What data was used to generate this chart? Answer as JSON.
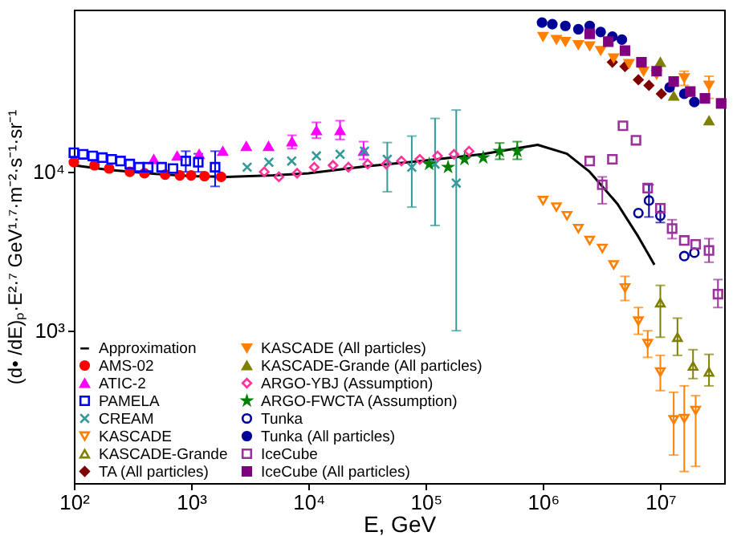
{
  "chart_data": {
    "type": "scatter",
    "xlabel": "E,  GeV",
    "ylabel": "(d• /dE)ₚ·E²·⁷  GeV¹·⁷·m⁻²·s⁻¹·sr⁻¹",
    "log": "xy",
    "grid": false,
    "legend": "bottom left",
    "xlim": [
      100,
      35000000
    ],
    "ylim": [
      110,
      105000
    ],
    "xticks": [
      {
        "value": 100,
        "label": "10²"
      },
      {
        "value": 1000,
        "label": "10³"
      },
      {
        "value": 10000,
        "label": "10⁴"
      },
      {
        "value": 100000,
        "label": "10⁵"
      },
      {
        "value": 1000000,
        "label": "10⁶"
      },
      {
        "value": 10000000,
        "label": "10⁷"
      }
    ],
    "yticks": [
      {
        "value": 1000,
        "label": "10³"
      },
      {
        "value": 10000,
        "label": "10⁴"
      }
    ],
    "series": [
      {
        "name": "Approximation",
        "type": "line",
        "color": "#000000",
        "marker": "none",
        "x": [
          100,
          200,
          500,
          1000,
          2000,
          5000,
          10000,
          30000,
          100000,
          300000,
          900000,
          1600000,
          2500000,
          4300000,
          6500000,
          8900000
        ],
        "values": [
          11000,
          10300,
          9700,
          9400,
          9300,
          9500,
          9800,
          10800,
          11800,
          12900,
          14800,
          13000,
          10000,
          6300,
          3900,
          2600
        ]
      },
      {
        "name": "AMS-02",
        "color": "#ff0000",
        "marker": "circle",
        "x": [
          100,
          150,
          200,
          300,
          400,
          600,
          800,
          1000,
          1300,
          1800
        ],
        "values": [
          11500,
          11000,
          10500,
          10000,
          9800,
          9600,
          9500,
          9500,
          9400,
          9300
        ]
      },
      {
        "name": "ATIC-2",
        "color": "#ff00ff",
        "marker": "triangle",
        "x": [
          480,
          760,
          1170,
          1860,
          2950,
          4570,
          7240,
          11700,
          18600,
          29500
        ],
        "values": [
          12000,
          12600,
          12900,
          13500,
          14500,
          14500,
          15500,
          18200,
          18200,
          13500
        ],
        "errors": [
          null,
          null,
          null,
          null,
          null,
          null,
          [
            14000,
            17000
          ],
          [
            16300,
            20500
          ],
          [
            16000,
            21000
          ],
          [
            12000,
            15500
          ]
        ]
      },
      {
        "name": "PAMELA",
        "color": "#0000ff",
        "marker": "square-open",
        "x": [
          100,
          120,
          145,
          175,
          210,
          250,
          300,
          360,
          430,
          560,
          700,
          900,
          1150,
          1600
        ],
        "values": [
          13200,
          12900,
          12600,
          12300,
          12000,
          11700,
          11200,
          10700,
          10700,
          10700,
          10500,
          11700,
          11500,
          10700
        ],
        "errors": [
          null,
          null,
          null,
          null,
          null,
          null,
          null,
          null,
          null,
          null,
          null,
          [
            10000,
            13500
          ],
          [
            10000,
            13000
          ],
          [
            8100,
            13500
          ]
        ]
      },
      {
        "name": "CREAM",
        "color": "#339999",
        "marker": "cross-open",
        "x": [
          3000,
          4600,
          7200,
          11700,
          18600,
          30000,
          47000,
          76000,
          120000,
          182000
        ],
        "values": [
          10700,
          11500,
          11700,
          12600,
          12900,
          13500,
          12000,
          10700,
          11200,
          8500
        ],
        "errors": [
          null,
          null,
          null,
          null,
          null,
          null,
          [
            7500,
            15300
          ],
          [
            6000,
            16800
          ],
          [
            4600,
            21700
          ],
          [
            1000,
            24500
          ]
        ]
      },
      {
        "name": "KASCADE",
        "color": "#ff8000",
        "marker": "triangle-down-open",
        "x": [
          1000000,
          1300000,
          1600000,
          2000000,
          2500000,
          3200000,
          4000000,
          5000000,
          6500000,
          7800000,
          10000000,
          13000000,
          16000000,
          20000000
        ],
        "values": [
          6600,
          6000,
          5300,
          4400,
          3700,
          3300,
          2600,
          1860,
          1150,
          830,
          550,
          275,
          280,
          315
        ],
        "errors": [
          null,
          null,
          null,
          null,
          null,
          null,
          null,
          [
            1550,
            2200
          ],
          [
            950,
            1400
          ],
          [
            680,
            1000
          ],
          [
            420,
            700
          ],
          [
            165,
            410
          ],
          [
            130,
            450
          ],
          [
            140,
            390
          ]
        ]
      },
      {
        "name": "KASCADE-Grande",
        "color": "#808000",
        "marker": "triangle-open",
        "x": [
          10000000,
          14000000,
          19000000,
          26000000
        ],
        "values": [
          1500,
          910,
          600,
          550
        ],
        "errors": [
          [
            910,
            1930
          ],
          [
            700,
            1200
          ],
          [
            500,
            760
          ],
          [
            450,
            710
          ]
        ]
      },
      {
        "name": "TA (All particles)",
        "color": "#800000",
        "marker": "diamond",
        "x": [
          3900000,
          5000000,
          6500000,
          8000000,
          10200000
        ],
        "values": [
          49000,
          46000,
          38000,
          35000,
          31000
        ]
      },
      {
        "name": "KASCADE (All particles)",
        "color": "#ff8000",
        "marker": "triangle-down",
        "x": [
          1000000,
          1300000,
          1550000,
          2000000,
          2500000,
          3100000,
          4000000,
          5400000,
          7200000,
          9300000,
          16000000,
          26000000
        ],
        "values": [
          71000,
          68000,
          66000,
          63000,
          62000,
          58000,
          52000,
          48000,
          43000,
          41000,
          39000,
          35000
        ],
        "errors": [
          null,
          null,
          null,
          null,
          null,
          null,
          null,
          null,
          null,
          null,
          [
            35000,
            43000
          ],
          [
            29000,
            40000
          ]
        ]
      },
      {
        "name": "KASCADE-Grande (All particles)",
        "color": "#808000",
        "marker": "triangle",
        "x": [
          10000000,
          13000000,
          26000000
        ],
        "values": [
          49000,
          30000,
          21000
        ]
      },
      {
        "name": "ARGO-YBJ (Assumption)",
        "color": "#ff3399",
        "marker": "diamond-open",
        "x": [
          4200,
          5600,
          8000,
          11200,
          16200,
          21900,
          32000,
          46000,
          62000,
          89000,
          126000,
          174000,
          234000
        ],
        "values": [
          10000,
          9300,
          9800,
          10700,
          11000,
          10700,
          11200,
          11200,
          11700,
          12000,
          12600,
          12900,
          13500
        ]
      },
      {
        "name": "ARGO-FWCTA (Assumption)",
        "color": "#008000",
        "marker": "star",
        "x": [
          107000,
          155000,
          214000,
          309000,
          427000,
          603000
        ],
        "values": [
          11200,
          10700,
          12000,
          12300,
          13500,
          13500
        ],
        "errors": [
          null,
          null,
          null,
          null,
          [
            12000,
            15200
          ],
          [
            12000,
            15500
          ]
        ]
      },
      {
        "name": "Tunka",
        "color": "#000099",
        "marker": "circle-open",
        "x": [
          6500000,
          8000000,
          10000000,
          16000000,
          19500000
        ],
        "values": [
          5500,
          6600,
          5300,
          2950,
          3100
        ],
        "errors": [
          null,
          [
            5200,
            8300
          ],
          [
            4800,
            6300
          ],
          null,
          null
        ]
      },
      {
        "name": "Tunka (All particles)",
        "color": "#000099",
        "marker": "circle",
        "x": [
          980000,
          1200000,
          1550000,
          2000000,
          2500000,
          3100000,
          3900000,
          4700000,
          12000000,
          16000000,
          19500000
        ],
        "values": [
          87000,
          85000,
          83000,
          79000,
          83000,
          76000,
          71000,
          68000,
          34000,
          31000,
          27500
        ]
      },
      {
        "name": "IceCube",
        "color": "#993399",
        "marker": "square-open",
        "x": [
          2500000,
          3200000,
          3900000,
          4800000,
          6200000,
          7800000,
          10000000,
          12600000,
          16000000,
          20000000,
          26000000,
          31000000
        ],
        "values": [
          11700,
          8300,
          12000,
          19500,
          15800,
          7900,
          5900,
          4400,
          3700,
          3500,
          3200,
          1700
        ],
        "errors": [
          null,
          [
            6300,
            9300
          ],
          null,
          null,
          null,
          null,
          null,
          [
            3800,
            5000
          ],
          null,
          null,
          [
            2700,
            3800
          ],
          [
            1400,
            2100
          ]
        ]
      },
      {
        "name": "IceCube (All particles)",
        "color": "#800080",
        "marker": "square",
        "x": [
          2500000,
          3600000,
          5000000,
          6900000,
          9300000,
          13000000,
          18000000,
          24000000,
          33000000
        ],
        "values": [
          74000,
          66000,
          58000,
          49000,
          43000,
          37000,
          32000,
          29000,
          27000
        ]
      }
    ]
  }
}
